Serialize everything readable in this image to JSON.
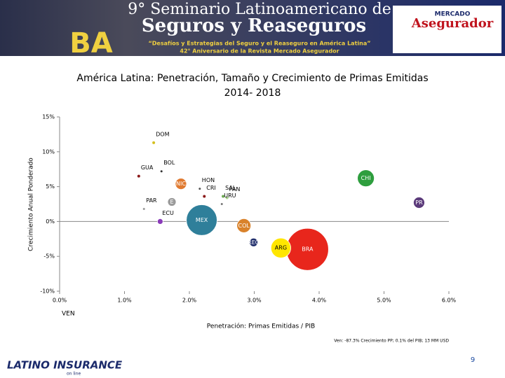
{
  "header": {
    "line1": "9° Seminario Latinoamericano de",
    "line2": "Seguros y Reaseguros",
    "tagline": "“Desafíos y Estrategias del Seguro y el Reaseguro en América Latina”",
    "anniversary": "42° Aniversario de la Revista Mercado Asegurador",
    "city": "BA",
    "logo_top": "MERCADO",
    "logo_bottom": "Asegurador"
  },
  "chart_data": {
    "type": "bubble",
    "title": "América Latina: Penetración, Tamaño y Crecimiento de Primas Emitidas",
    "subtitle": "2014- 2018",
    "x_label": "Penetración: Primas Emitidas / PIB",
    "y_label": "Crecimiento Anual Ponderado",
    "labels": [
      "DOM",
      "BOL",
      "GUA",
      "NIC",
      "HON",
      "CRI",
      "SAL",
      "PAN",
      "CHI",
      "PR",
      "E",
      "URU",
      "PAR",
      "MEX",
      "ECU",
      "COL",
      "REG",
      "ARG",
      "BRA"
    ],
    "x": [
      1.45,
      1.57,
      1.22,
      1.87,
      2.16,
      2.23,
      2.52,
      2.58,
      4.72,
      5.54,
      1.73,
      2.5,
      1.3,
      2.19,
      1.55,
      2.84,
      2.99,
      3.41,
      3.82
    ],
    "y": [
      11.3,
      7.2,
      6.5,
      5.4,
      4.7,
      3.6,
      3.6,
      3.4,
      6.2,
      2.7,
      2.8,
      2.5,
      1.8,
      0.2,
      0.0,
      -0.6,
      -3.0,
      -3.8,
      -4.0
    ],
    "size": [
      4,
      2,
      4,
      64,
      2,
      4,
      4,
      4,
      144,
      64,
      36,
      2,
      2,
      480,
      16,
      100,
      36,
      200,
      900
    ],
    "colors": [
      "#d4c020",
      "#333333",
      "#8b1a1a",
      "#e07a30",
      "#555555",
      "#8b1a1a",
      "#6aa84f",
      "#a8d08d",
      "#2e9e3e",
      "#5b3a7a",
      "#9a9a9a",
      "#777777",
      "#999999",
      "#2f7f9a",
      "#8a3ab9",
      "#d9822b",
      "#1f2d6b",
      "#ffe600",
      "#e8261c"
    ],
    "xlim": [
      0,
      6
    ],
    "ylim": [
      -10,
      15
    ],
    "xticks": [
      {
        "value": 0,
        "label": "0.0%"
      },
      {
        "value": 1,
        "label": "1.0%"
      },
      {
        "value": 2,
        "label": "2.0%"
      },
      {
        "value": 3,
        "label": "3.0%"
      },
      {
        "value": 4,
        "label": "4.0%"
      },
      {
        "value": 5,
        "label": "5.0%"
      },
      {
        "value": 6,
        "label": "6.0%"
      }
    ],
    "yticks": [
      {
        "value": 15,
        "label": "15%"
      },
      {
        "value": 10,
        "label": "10%"
      },
      {
        "value": 5,
        "label": "5%"
      },
      {
        "value": 0,
        "label": "0%"
      },
      {
        "value": -5,
        "label": "-5%"
      },
      {
        "value": -10,
        "label": "-10%"
      }
    ],
    "offchart_label": "VEN",
    "note": "Ven: -87.3% Crecimiento PP; 0.1% del PIB; 13 MM USD"
  },
  "footer": {
    "brand": "LATINO INSURANCE",
    "brand_sub": "on line",
    "page": "9"
  }
}
